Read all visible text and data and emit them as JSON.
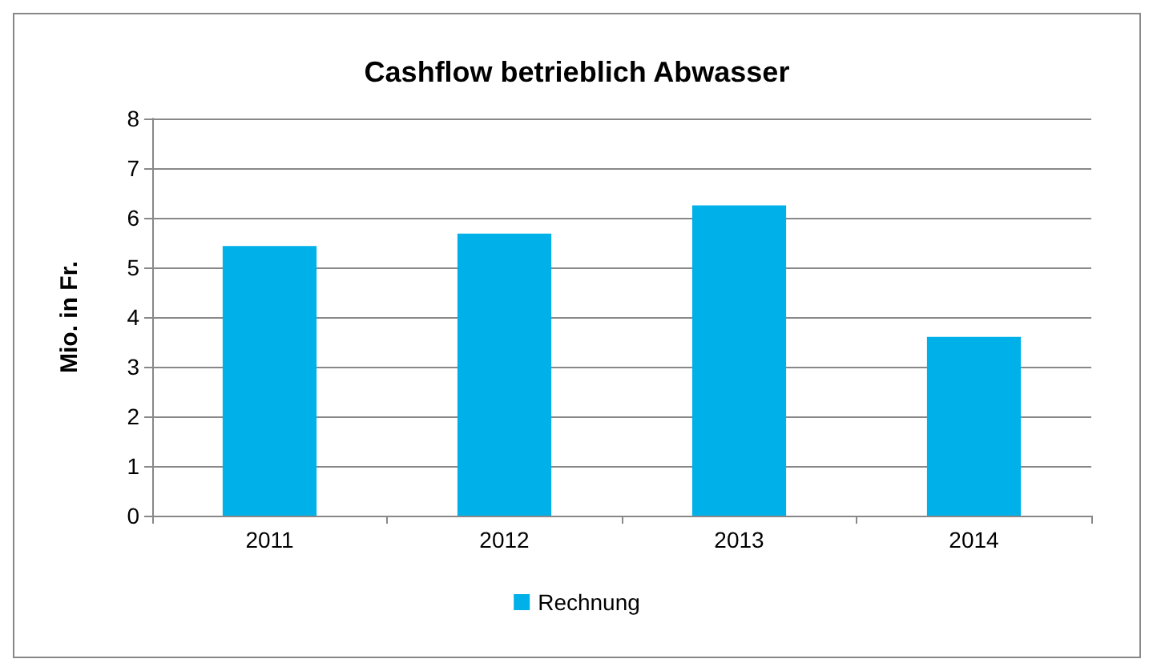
{
  "chart_data": {
    "type": "bar",
    "title": "Cashflow betrieblich Abwasser",
    "ylabel": "Mio. in Fr.",
    "categories": [
      "2011",
      "2012",
      "2013",
      "2014"
    ],
    "series": [
      {
        "name": "Rechnung",
        "color": "#00b0e8",
        "values": [
          5.43,
          5.68,
          6.25,
          3.6
        ]
      }
    ],
    "ylim": [
      0,
      8
    ],
    "yticks": [
      0,
      1,
      2,
      3,
      4,
      5,
      6,
      7,
      8
    ],
    "grid": "y",
    "legend": "bottom"
  }
}
